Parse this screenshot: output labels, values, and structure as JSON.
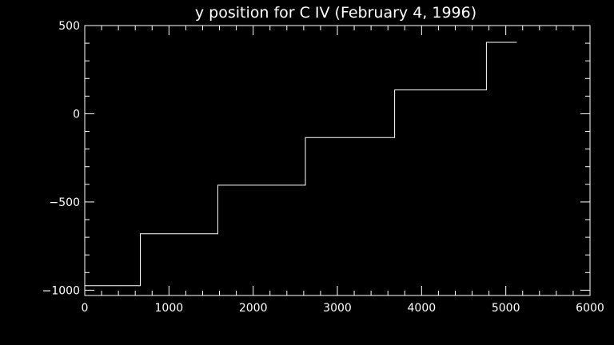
{
  "chart_data": {
    "type": "line",
    "title": "y position for C IV (February 4, 1996)",
    "xlabel": "",
    "ylabel": "",
    "xlim": [
      0,
      6000
    ],
    "ylim": [
      -1030,
      500
    ],
    "x_ticks": [
      0,
      1000,
      2000,
      3000,
      4000,
      5000,
      6000
    ],
    "y_ticks": [
      -1000,
      -500,
      0,
      500
    ],
    "x_tick_labels": [
      "0",
      "1000",
      "2000",
      "3000",
      "4000",
      "5000",
      "6000"
    ],
    "y_tick_labels": [
      "−1000",
      "−500",
      "0",
      "500"
    ],
    "grid": false,
    "colors": {
      "background": "#000000",
      "foreground": "#ffffff",
      "line": "#ffffff"
    },
    "series": [
      {
        "x": [
          0,
          660,
          660,
          1580,
          1580,
          2620,
          2620,
          3680,
          3680,
          4770,
          4770,
          5130
        ],
        "values": [
          -975,
          -975,
          -680,
          -680,
          -405,
          -405,
          -135,
          -135,
          135,
          135,
          405,
          405
        ]
      }
    ]
  }
}
